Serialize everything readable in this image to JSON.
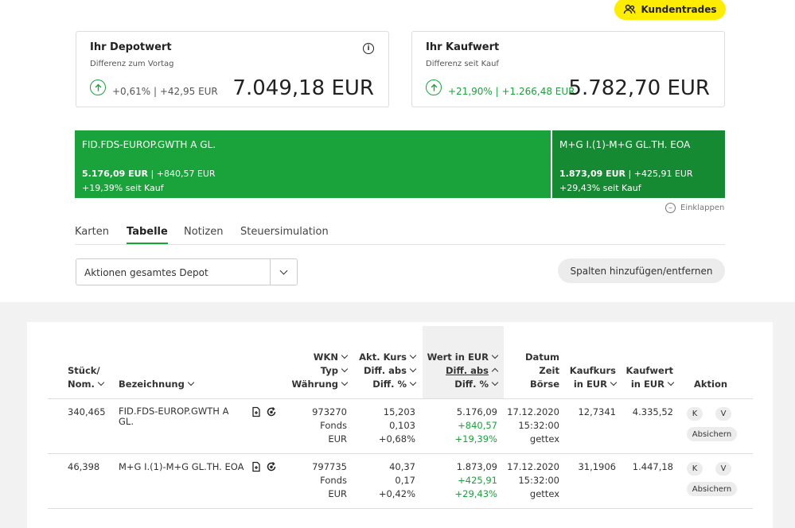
{
  "header": {
    "kundentrades_label": "Kundentrades"
  },
  "depot_card": {
    "title": "Ihr Depotwert",
    "subtitle": "Differenz zum Vortag",
    "diff": "+0,61% | +42,95 EUR",
    "value": "7.049,18 EUR",
    "info_icon": "i"
  },
  "kauf_card": {
    "title": "Ihr Kaufwert",
    "subtitle": "Differenz seit Kauf",
    "diff": "+21,90% | +1.266,48 EUR",
    "value": "5.782,70 EUR"
  },
  "tiles": [
    {
      "name": "FID.FDS-EUROP.GWTH A GL.",
      "value": "5.176,09 EUR",
      "diff": " | +840,57 EUR",
      "pct": "+19,39% seit Kauf",
      "share": 0.734
    },
    {
      "name": "M+G I.(1)-M+G GL.TH. EOA",
      "value": "1.873,09 EUR",
      "diff": " | +425,91 EUR",
      "pct": "+29,43% seit Kauf",
      "share": 0.266
    }
  ],
  "einklappen_label": "Einklappen",
  "tabs": [
    "Karten",
    "Tabelle",
    "Notizen",
    "Steuersimulation"
  ],
  "active_tab": "Tabelle",
  "select": {
    "value": "Aktionen gesamtes Depot"
  },
  "spalten_button": "Spalten hinzufügen/entfernen",
  "table": {
    "headers": {
      "stueck": [
        "Stück/",
        "Nom."
      ],
      "bezeichnung": "Bezeichnung",
      "wkn": [
        "WKN",
        "Typ",
        "Währung"
      ],
      "kurs": [
        "Akt. Kurs",
        "Diff. abs",
        "Diff. %"
      ],
      "wert": [
        "Wert in EUR",
        "Diff. abs",
        "Diff. %"
      ],
      "datum": [
        "Datum",
        "Zeit",
        "Börse"
      ],
      "kaufkurs": [
        "Kaufkurs",
        "in EUR"
      ],
      "kaufwert": [
        "Kaufwert",
        "in EUR"
      ],
      "aktion": "Aktion"
    },
    "rows": [
      {
        "stueck": "340,465",
        "bezeichnung": "FID.FDS-EUROP.GWTH A GL.",
        "wkn": "973270",
        "typ": "Fonds",
        "waehrung": "EUR",
        "kurs": "15,203",
        "kurs_diff": "0,103",
        "kurs_pct": "+0,68%",
        "wert": "5.176,09",
        "wert_diff": "+840,57",
        "wert_pct": "+19,39%",
        "datum": "17.12.2020",
        "zeit": "15:32:00",
        "boerse": "gettex",
        "kaufkurs": "12,7341",
        "kaufwert": "4.335,52",
        "k": "K",
        "v": "V",
        "absichern": "Absichern"
      },
      {
        "stueck": "46,398",
        "bezeichnung": "M+G I.(1)-M+G GL.TH. EOA",
        "wkn": "797735",
        "typ": "Fonds",
        "waehrung": "EUR",
        "kurs": "40,37",
        "kurs_diff": "0,17",
        "kurs_pct": "+0,42%",
        "wert": "1.873,09",
        "wert_diff": "+425,91",
        "wert_pct": "+29,43%",
        "datum": "17.12.2020",
        "zeit": "15:32:00",
        "boerse": "gettex",
        "kaufkurs": "31,1906",
        "kaufwert": "1.447,18",
        "k": "K",
        "v": "V",
        "absichern": "Absichern"
      }
    ]
  },
  "colors": {
    "green": "#19a33a",
    "dark_green": "#168a32",
    "yellow": "#ffed00"
  },
  "icons": [
    "users-icon",
    "info-icon",
    "arrow-up-circle-icon",
    "minus-circle-icon",
    "chevron-down-icon",
    "document-icon",
    "refresh-icon"
  ]
}
